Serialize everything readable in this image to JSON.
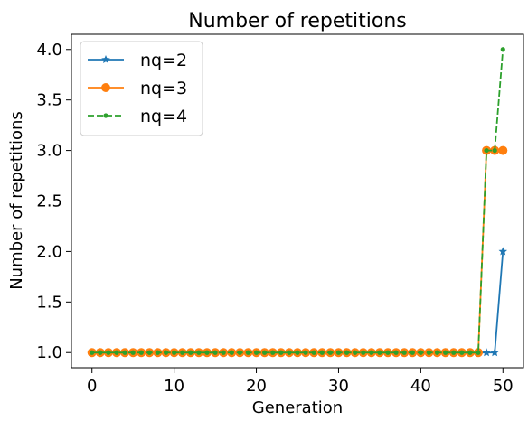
{
  "chart_data": {
    "type": "line",
    "title": "Number of repetitions",
    "xlabel": "Generation",
    "ylabel": "Number of repetitions",
    "xlim": [
      -2.5,
      52.5
    ],
    "ylim": [
      0.85,
      4.15
    ],
    "xticks": [
      0,
      10,
      20,
      30,
      40,
      50
    ],
    "yticks": [
      1.0,
      1.5,
      2.0,
      2.5,
      3.0,
      3.5,
      4.0
    ],
    "xtick_labels": [
      "0",
      "10",
      "20",
      "30",
      "40",
      "50"
    ],
    "ytick_labels": [
      "1.0",
      "1.5",
      "2.0",
      "2.5",
      "3.0",
      "3.5",
      "4.0"
    ],
    "grid": false,
    "legend_position": "top-left",
    "x": [
      0,
      1,
      2,
      3,
      4,
      5,
      6,
      7,
      8,
      9,
      10,
      11,
      12,
      13,
      14,
      15,
      16,
      17,
      18,
      19,
      20,
      21,
      22,
      23,
      24,
      25,
      26,
      27,
      28,
      29,
      30,
      31,
      32,
      33,
      34,
      35,
      36,
      37,
      38,
      39,
      40,
      41,
      42,
      43,
      44,
      45,
      46,
      47,
      48,
      49,
      50
    ],
    "series": [
      {
        "name": "nq=2",
        "color": "#1f77b4",
        "marker": "star",
        "line_style": "solid",
        "values": [
          1,
          1,
          1,
          1,
          1,
          1,
          1,
          1,
          1,
          1,
          1,
          1,
          1,
          1,
          1,
          1,
          1,
          1,
          1,
          1,
          1,
          1,
          1,
          1,
          1,
          1,
          1,
          1,
          1,
          1,
          1,
          1,
          1,
          1,
          1,
          1,
          1,
          1,
          1,
          1,
          1,
          1,
          1,
          1,
          1,
          1,
          1,
          1,
          1,
          1,
          2
        ]
      },
      {
        "name": "nq=3",
        "color": "#ff7f0e",
        "marker": "circle",
        "line_style": "solid",
        "values": [
          1,
          1,
          1,
          1,
          1,
          1,
          1,
          1,
          1,
          1,
          1,
          1,
          1,
          1,
          1,
          1,
          1,
          1,
          1,
          1,
          1,
          1,
          1,
          1,
          1,
          1,
          1,
          1,
          1,
          1,
          1,
          1,
          1,
          1,
          1,
          1,
          1,
          1,
          1,
          1,
          1,
          1,
          1,
          1,
          1,
          1,
          1,
          1,
          3,
          3,
          3
        ]
      },
      {
        "name": "nq=4",
        "color": "#2ca02c",
        "marker": "point",
        "line_style": "dashed",
        "values": [
          1,
          1,
          1,
          1,
          1,
          1,
          1,
          1,
          1,
          1,
          1,
          1,
          1,
          1,
          1,
          1,
          1,
          1,
          1,
          1,
          1,
          1,
          1,
          1,
          1,
          1,
          1,
          1,
          1,
          1,
          1,
          1,
          1,
          1,
          1,
          1,
          1,
          1,
          1,
          1,
          1,
          1,
          1,
          1,
          1,
          1,
          1,
          1,
          3,
          3,
          4
        ]
      }
    ]
  }
}
